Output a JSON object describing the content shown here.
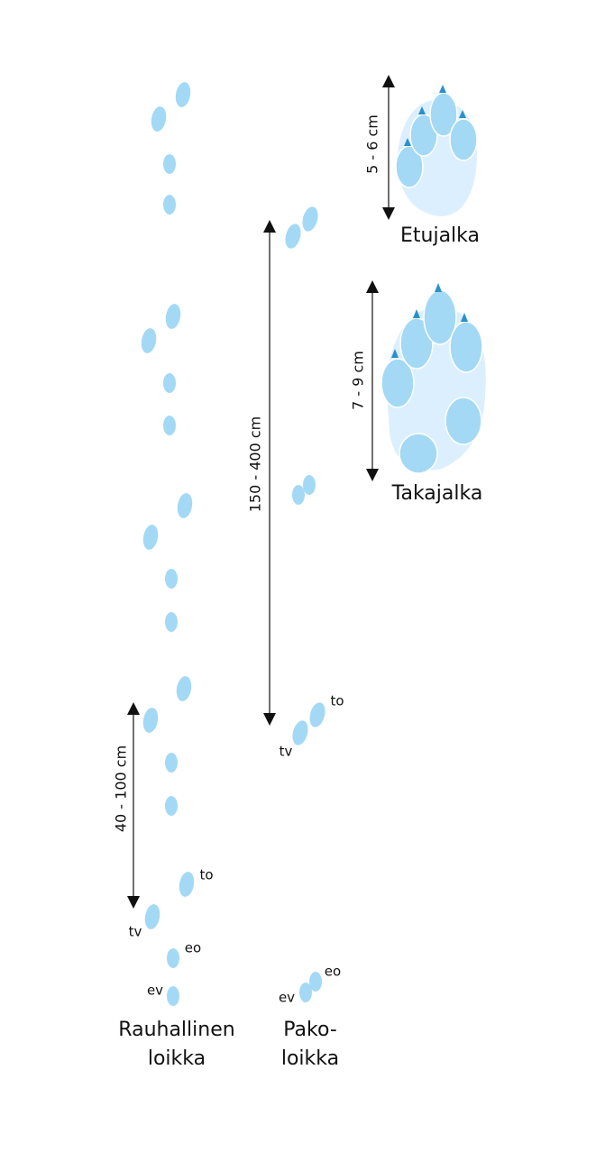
{
  "paws": [
    {
      "size": "5 - 6 cm",
      "label": "Etujalka"
    },
    {
      "size": "7 - 9 cm",
      "label": "Takajalka"
    }
  ],
  "gaits": [
    {
      "name_lines": [
        "Rauhallinen",
        "loikka"
      ],
      "distance": "40 - 100 cm",
      "labels": [
        "to",
        "tv",
        "eo",
        "ev"
      ]
    },
    {
      "name_lines": [
        "Pako-",
        "loikka"
      ],
      "distance": "150 - 400 cm",
      "labels": [
        "to",
        "tv",
        "eo",
        "ev"
      ]
    }
  ]
}
